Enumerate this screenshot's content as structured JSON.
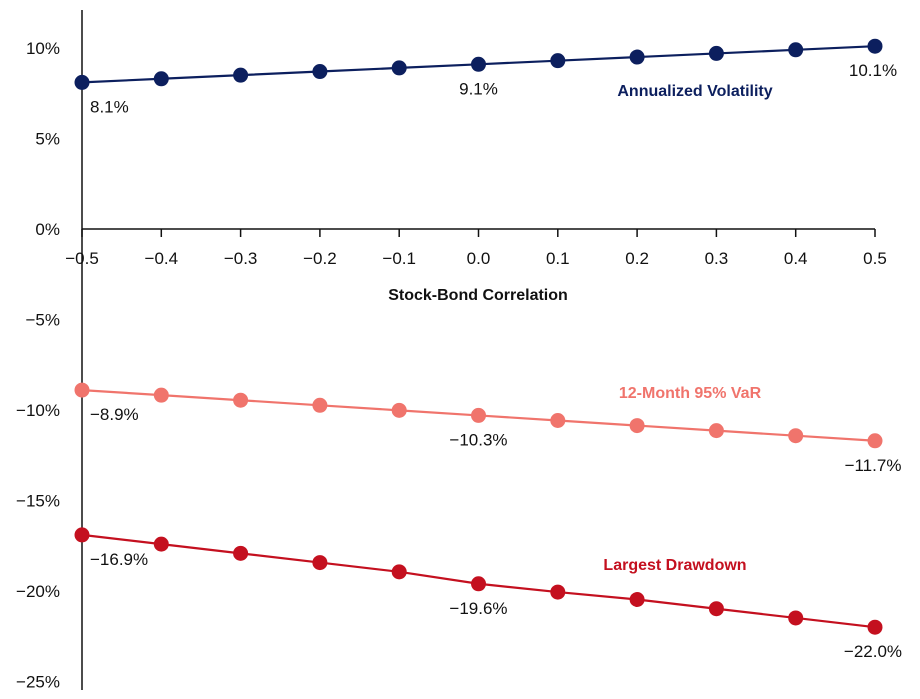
{
  "chart_data": {
    "type": "line",
    "title": "",
    "xlabel": "Stock-Bond Correlation",
    "ylabel": "",
    "x": [
      -0.5,
      -0.4,
      -0.3,
      -0.2,
      -0.1,
      0.0,
      0.1,
      0.2,
      0.3,
      0.4,
      0.5
    ],
    "x_tick_labels": [
      "−0.5",
      "−0.4",
      "−0.3",
      "−0.2",
      "−0.1",
      "0.0",
      "0.1",
      "0.2",
      "0.3",
      "0.4",
      "0.5"
    ],
    "y_ticks": [
      10,
      5,
      0,
      -5,
      -10,
      -15,
      -20,
      -25
    ],
    "y_tick_labels": [
      "10%",
      "5%",
      "0%",
      "−5%",
      "−10%",
      "−15%",
      "−20%",
      "−25%"
    ],
    "ylim": [
      -25,
      10
    ],
    "xlim": [
      -0.5,
      0.5
    ],
    "grid": false,
    "series": [
      {
        "name": "Annualized Volatility",
        "color": "#0c1f5e",
        "values": [
          8.1,
          8.3,
          8.5,
          8.7,
          8.9,
          9.1,
          9.3,
          9.5,
          9.7,
          9.9,
          10.1
        ],
        "data_labels": [
          {
            "index": 0,
            "text": "8.1%"
          },
          {
            "index": 5,
            "text": "9.1%"
          },
          {
            "index": 10,
            "text": "10.1%"
          }
        ]
      },
      {
        "name": "12-Month 95% VaR",
        "color": "#f0746c",
        "values": [
          -8.9,
          -9.18,
          -9.46,
          -9.74,
          -10.02,
          -10.3,
          -10.58,
          -10.86,
          -11.14,
          -11.42,
          -11.7
        ],
        "data_labels": [
          {
            "index": 0,
            "text": "−8.9%"
          },
          {
            "index": 5,
            "text": "−10.3%"
          },
          {
            "index": 10,
            "text": "−11.7%"
          }
        ]
      },
      {
        "name": "Largest Drawdown",
        "color": "#c4101f",
        "values": [
          -16.9,
          -17.41,
          -17.92,
          -18.43,
          -18.94,
          -19.6,
          -20.06,
          -20.47,
          -20.98,
          -21.49,
          -22.0
        ],
        "data_labels": [
          {
            "index": 0,
            "text": "−16.9%"
          },
          {
            "index": 5,
            "text": "−19.6%"
          },
          {
            "index": 10,
            "text": "−22.0%"
          }
        ]
      }
    ]
  }
}
